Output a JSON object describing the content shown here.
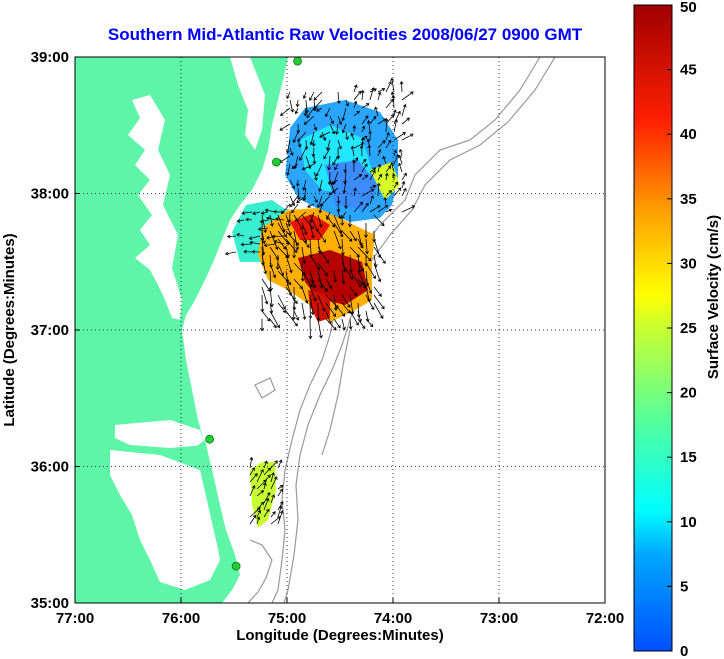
{
  "title": "Southern Mid-Atlantic Raw Velocities 2008/06/27 0900 GMT",
  "xlabel": "Longitude (Degrees:Minutes)",
  "ylabel": "Latitude (Degrees:Minutes)",
  "colorbar_label": "Surface Velocity (cm/s)",
  "colors": {
    "title": "#0000ff",
    "land": "#5ef5a8",
    "bathymetry": "#999999",
    "grid": "#000000",
    "arrows": "#000000",
    "station": "#22cc33"
  },
  "x_ticks": [
    {
      "value": -77,
      "label": "77:00"
    },
    {
      "value": -76,
      "label": "76:00"
    },
    {
      "value": -75,
      "label": "75:00"
    },
    {
      "value": -74,
      "label": "74:00"
    },
    {
      "value": -73,
      "label": "73:00"
    },
    {
      "value": -72,
      "label": "72:00"
    }
  ],
  "y_ticks": [
    {
      "value": 35,
      "label": "35:00"
    },
    {
      "value": 36,
      "label": "36:00"
    },
    {
      "value": 37,
      "label": "37:00"
    },
    {
      "value": 38,
      "label": "38:00"
    },
    {
      "value": 39,
      "label": "39:00"
    }
  ],
  "colorbar_ticks": [
    {
      "value": 0,
      "label": "0"
    },
    {
      "value": 5,
      "label": "5"
    },
    {
      "value": 10,
      "label": "10"
    },
    {
      "value": 15,
      "label": "15"
    },
    {
      "value": 20,
      "label": "20"
    },
    {
      "value": 25,
      "label": "25"
    },
    {
      "value": 30,
      "label": "30"
    },
    {
      "value": 35,
      "label": "35"
    },
    {
      "value": 40,
      "label": "40"
    },
    {
      "value": 45,
      "label": "45"
    },
    {
      "value": 50,
      "label": "50"
    }
  ],
  "chart_data": {
    "type": "heatmap",
    "title": "Southern Mid-Atlantic Raw Velocities 2008/06/27 0900 GMT",
    "xlabel": "Longitude (Degrees:Minutes)",
    "ylabel": "Latitude (Degrees:Minutes)",
    "xlim": [
      -77,
      -72
    ],
    "ylim": [
      35,
      39
    ],
    "colorbar": {
      "label": "Surface Velocity (cm/s)",
      "range": [
        0,
        50
      ],
      "colormap": "jet"
    },
    "grid": true,
    "stations": [
      {
        "lon": -74.9,
        "lat": 38.97
      },
      {
        "lon": -75.1,
        "lat": 38.23
      },
      {
        "lon": -75.73,
        "lat": 36.2
      },
      {
        "lon": -75.48,
        "lat": 35.27
      }
    ],
    "velocity_regions": [
      {
        "name": "north_slow",
        "lon": [
          -75.0,
          -74.1
        ],
        "lat": [
          37.75,
          38.55
        ],
        "speed_cm_s": 8
      },
      {
        "name": "south_fast",
        "lon": [
          -75.0,
          -74.15
        ],
        "lat": [
          37.0,
          37.75
        ],
        "speed_cm_s": 42
      },
      {
        "name": "west_mid",
        "lon": [
          -75.5,
          -75.05
        ],
        "lat": [
          37.5,
          37.9
        ],
        "speed_cm_s": 16
      },
      {
        "name": "hatteras_patch",
        "lon": [
          -75.35,
          -75.1
        ],
        "lat": [
          35.55,
          36.05
        ],
        "speed_cm_s": 22
      }
    ]
  }
}
